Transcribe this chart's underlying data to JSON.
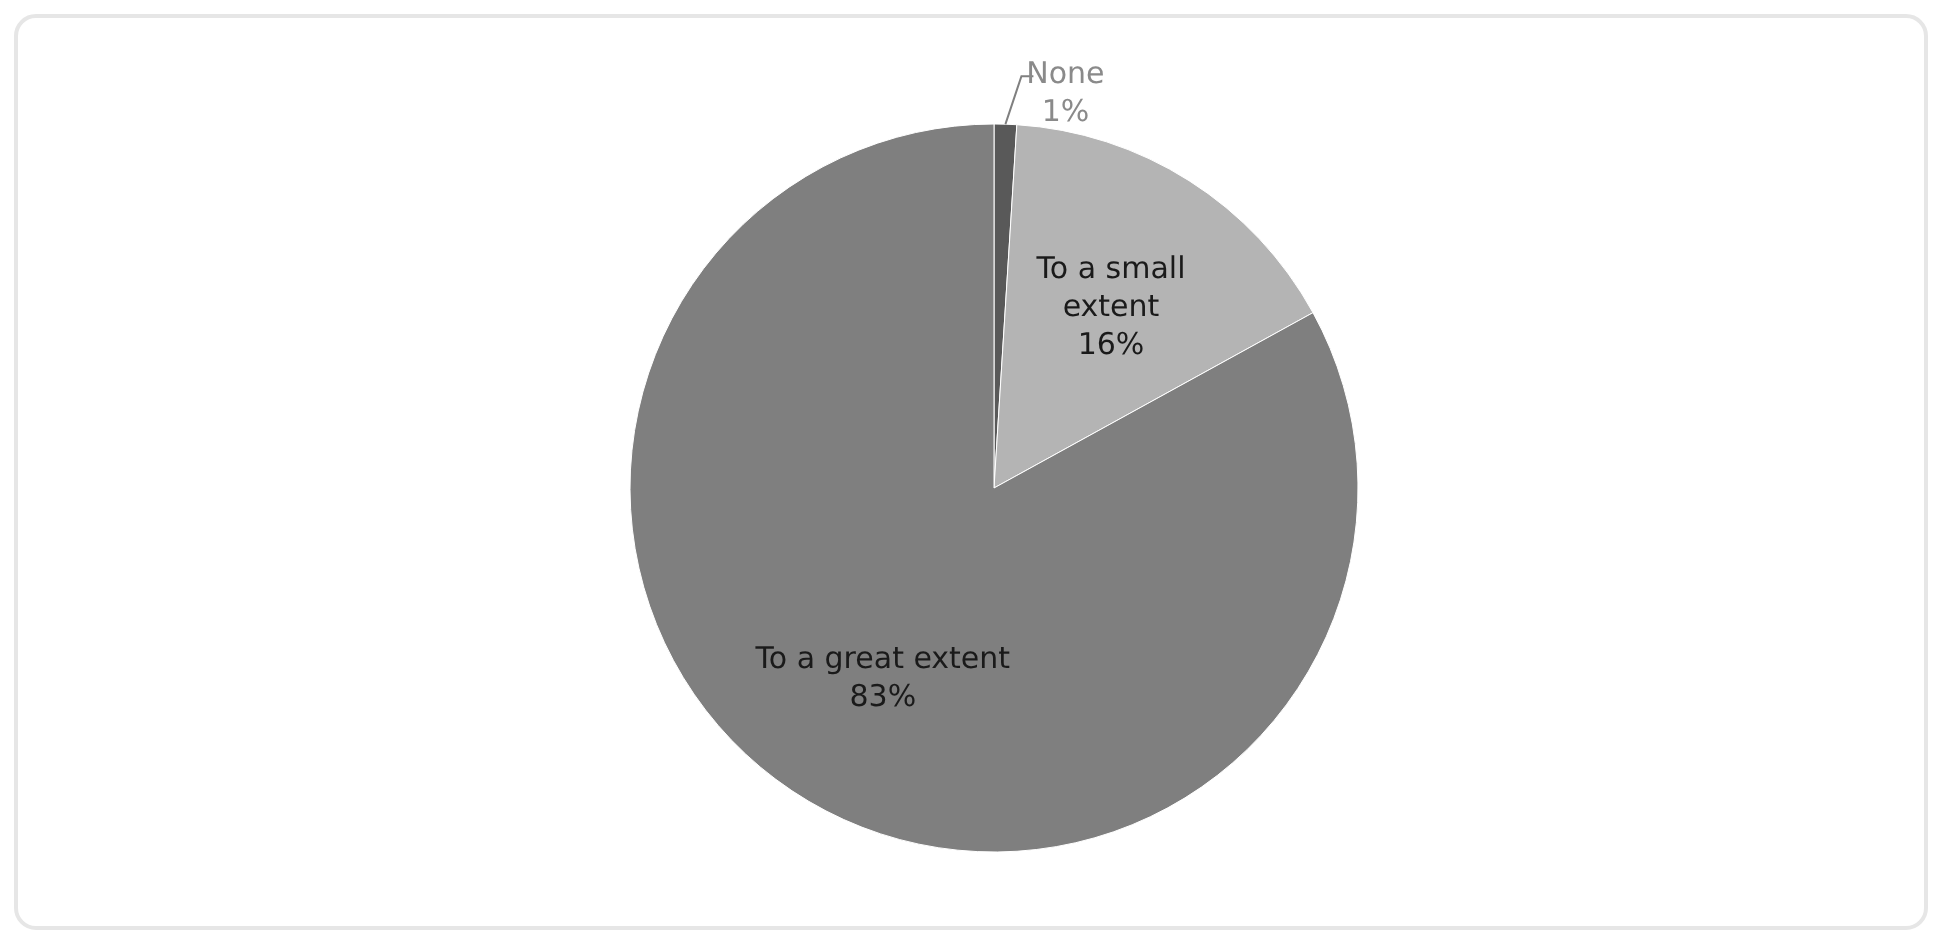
{
  "chart_data": {
    "type": "pie",
    "categories": [
      "None",
      "To a small extent",
      "To a great extent"
    ],
    "values": [
      1,
      16,
      83
    ],
    "colors": [
      "#595959",
      "#b4b4b4",
      "#7f7f7f"
    ],
    "value_labels": [
      "1%",
      "16%",
      "83%"
    ],
    "legend": false
  }
}
